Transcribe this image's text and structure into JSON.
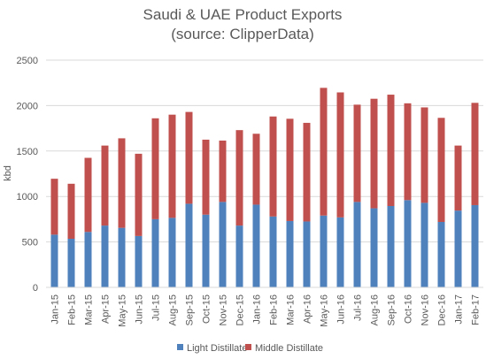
{
  "chart_data": {
    "type": "bar",
    "stacked": true,
    "title": "Saudi & UAE Product Exports",
    "subtitle": "(source: ClipperData)",
    "xlabel": "",
    "ylabel": "kbd",
    "ylim": [
      0,
      2500
    ],
    "yticks": [
      0,
      500,
      1000,
      1500,
      2000,
      2500
    ],
    "grid": true,
    "legend_position": "bottom",
    "categories": [
      "Jan-15",
      "Feb-15",
      "Mar-15",
      "Apr-15",
      "May-15",
      "Jun-15",
      "Jul-15",
      "Aug-15",
      "Sep-15",
      "Oct-15",
      "Nov-15",
      "Dec-15",
      "Jan-16",
      "Feb-16",
      "Mar-16",
      "Apr-16",
      "May-16",
      "Jun-16",
      "Jul-16",
      "Aug-16",
      "Sep-16",
      "Oct-16",
      "Nov-16",
      "Dec-16",
      "Jan-17",
      "Feb-17"
    ],
    "series": [
      {
        "name": "Light Distillate",
        "color": "#4f81bd",
        "values": [
          580,
          535,
          610,
          680,
          655,
          565,
          750,
          765,
          920,
          800,
          940,
          680,
          910,
          780,
          730,
          725,
          790,
          770,
          940,
          870,
          895,
          960,
          930,
          720,
          845,
          905
        ]
      },
      {
        "name": "Middle Distillate",
        "color": "#c0504d",
        "values": [
          615,
          605,
          815,
          880,
          985,
          905,
          1110,
          1135,
          1010,
          825,
          675,
          1050,
          780,
          1100,
          1125,
          1085,
          1405,
          1375,
          1070,
          1205,
          1225,
          1065,
          1050,
          1145,
          715,
          1125
        ]
      }
    ]
  }
}
